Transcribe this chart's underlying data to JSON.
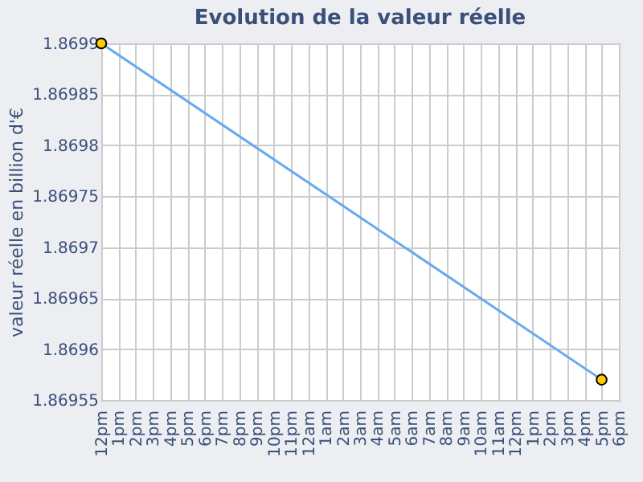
{
  "chart_data": {
    "type": "line",
    "title": "Evolution de la valeur réelle",
    "ylabel": "valeur réelle en billion d'€",
    "categories": [
      "12pm",
      "1pm",
      "2pm",
      "3pm",
      "4pm",
      "5pm",
      "6pm",
      "7pm",
      "8pm",
      "9pm",
      "10pm",
      "11pm",
      "12am",
      "1am",
      "2am",
      "3am",
      "4am",
      "5am",
      "6am",
      "7am",
      "8am",
      "9am",
      "10am",
      "11am",
      "12pm",
      "1pm",
      "2pm",
      "3pm",
      "4pm",
      "5pm",
      "6pm"
    ],
    "series": [
      {
        "color": "#66aaee",
        "values": [
          1.8699,
          null,
          null,
          null,
          null,
          null,
          null,
          null,
          null,
          null,
          null,
          null,
          null,
          null,
          null,
          null,
          null,
          null,
          null,
          null,
          null,
          null,
          null,
          null,
          null,
          null,
          null,
          null,
          null,
          1.86957,
          null
        ]
      }
    ],
    "ylim": [
      1.86955,
      1.8699
    ],
    "yticks": [
      1.86955,
      1.8696,
      1.86965,
      1.8697,
      1.86975,
      1.8698,
      1.86985,
      1.8699
    ],
    "grid": true,
    "marker": "circle",
    "line_style": "solid"
  }
}
